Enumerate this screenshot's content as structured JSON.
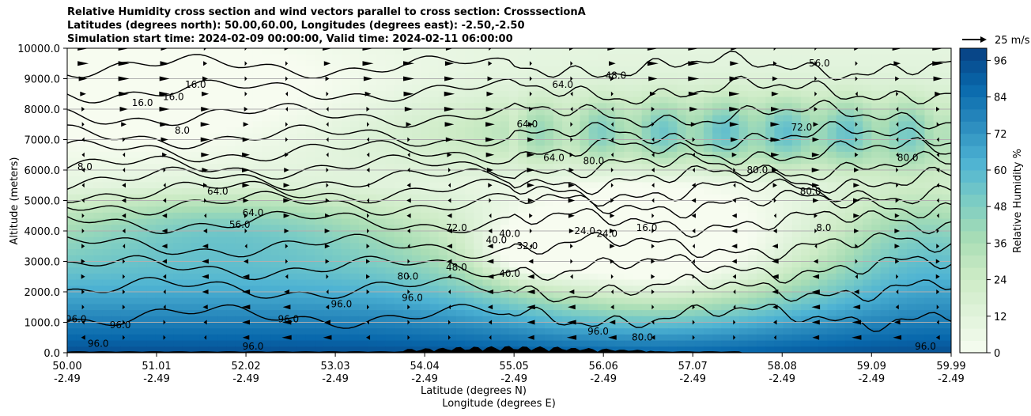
{
  "chart_data": {
    "type": "heatmap",
    "title_lines": [
      "Relative Humidity cross section and wind vectors parallel to cross section: CrosssectionA",
      "Latitudes (degrees north): 50.00,60.00, Longitudes (degrees east): -2.50,-2.50",
      "Simulation start time: 2024-02-09 00:00:00, Valid time: 2024-02-11 06:00:00"
    ],
    "xlabel": "Latitude (degrees N)",
    "xlabel2": "Longitude (degrees E)",
    "ylabel": "Altitude (meters)",
    "xlim": [
      50.0,
      59.99
    ],
    "ylim": [
      0,
      10000
    ],
    "x_ticks": [
      {
        "lat": "50.00",
        "lon": "-2.49",
        "v": 50.0
      },
      {
        "lat": "51.01",
        "lon": "-2.49",
        "v": 51.01
      },
      {
        "lat": "52.02",
        "lon": "-2.49",
        "v": 52.02
      },
      {
        "lat": "53.03",
        "lon": "-2.49",
        "v": 53.03
      },
      {
        "lat": "54.04",
        "lon": "-2.49",
        "v": 54.04
      },
      {
        "lat": "55.05",
        "lon": "-2.49",
        "v": 55.05
      },
      {
        "lat": "56.06",
        "lon": "-2.49",
        "v": 56.06
      },
      {
        "lat": "57.07",
        "lon": "-2.49",
        "v": 57.07
      },
      {
        "lat": "58.08",
        "lon": "-2.49",
        "v": 58.08
      },
      {
        "lat": "59.09",
        "lon": "-2.49",
        "v": 59.09
      },
      {
        "lat": "59.99",
        "lon": "-2.49",
        "v": 59.99
      }
    ],
    "y_ticks": [
      {
        "label": "0.0",
        "v": 0
      },
      {
        "label": "1000.0",
        "v": 1000
      },
      {
        "label": "2000.0",
        "v": 2000
      },
      {
        "label": "3000.0",
        "v": 3000
      },
      {
        "label": "4000.0",
        "v": 4000
      },
      {
        "label": "5000.0",
        "v": 5000
      },
      {
        "label": "6000.0",
        "v": 6000
      },
      {
        "label": "7000.0",
        "v": 7000
      },
      {
        "label": "8000.0",
        "v": 8000
      },
      {
        "label": "9000.0",
        "v": 9000
      },
      {
        "label": "10000.0",
        "v": 10000
      }
    ],
    "grid": "horizontal",
    "colorbar": {
      "label": "Relative Humidity %",
      "range": [
        0,
        100
      ],
      "ticks": [
        0,
        12,
        24,
        36,
        48,
        60,
        72,
        84,
        96
      ],
      "colors": [
        "#f7fcf0",
        "#e0f3db",
        "#ccebc5",
        "#a8ddb5",
        "#7bccc4",
        "#4eb3d3",
        "#2b8cbe",
        "#0868ac",
        "#084081"
      ]
    },
    "quiver_key": {
      "label": "25 m/s",
      "value": 25
    },
    "contour_labels": [
      {
        "t": "16.0",
        "x": 50.85,
        "y": 8100
      },
      {
        "t": "16.0",
        "x": 51.2,
        "y": 8300
      },
      {
        "t": "16.0",
        "x": 51.45,
        "y": 8700
      },
      {
        "t": "8.0",
        "x": 51.3,
        "y": 7200
      },
      {
        "t": "8.0",
        "x": 50.2,
        "y": 6000
      },
      {
        "t": "64.0",
        "x": 51.7,
        "y": 5200
      },
      {
        "t": "64.0",
        "x": 52.1,
        "y": 4500
      },
      {
        "t": "56.0",
        "x": 51.95,
        "y": 4100
      },
      {
        "t": "48.0",
        "x": 56.2,
        "y": 9000
      },
      {
        "t": "64.0",
        "x": 55.6,
        "y": 8700
      },
      {
        "t": "64.0",
        "x": 55.2,
        "y": 7400
      },
      {
        "t": "64.0",
        "x": 55.5,
        "y": 6300
      },
      {
        "t": "80.0",
        "x": 55.95,
        "y": 6200
      },
      {
        "t": "80.0",
        "x": 57.8,
        "y": 5900
      },
      {
        "t": "80.0",
        "x": 59.5,
        "y": 6300
      },
      {
        "t": "80.0",
        "x": 58.4,
        "y": 5200
      },
      {
        "t": "72.0",
        "x": 58.3,
        "y": 7300
      },
      {
        "t": "56.0",
        "x": 58.5,
        "y": 9400
      },
      {
        "t": "72.0",
        "x": 54.4,
        "y": 4000
      },
      {
        "t": "40.0",
        "x": 55.0,
        "y": 3800
      },
      {
        "t": "40.0",
        "x": 54.85,
        "y": 3600
      },
      {
        "t": "32.0",
        "x": 55.2,
        "y": 3400
      },
      {
        "t": "24.0",
        "x": 55.85,
        "y": 3900
      },
      {
        "t": "24.0",
        "x": 56.1,
        "y": 3800
      },
      {
        "t": "16.0",
        "x": 56.55,
        "y": 4000
      },
      {
        "t": "40.0",
        "x": 55.0,
        "y": 2500
      },
      {
        "t": "48.0",
        "x": 54.4,
        "y": 2700
      },
      {
        "t": "80.0",
        "x": 53.85,
        "y": 2400
      },
      {
        "t": "96.0",
        "x": 53.9,
        "y": 1700
      },
      {
        "t": "96.0",
        "x": 53.1,
        "y": 1500
      },
      {
        "t": "96.0",
        "x": 52.5,
        "y": 1000
      },
      {
        "t": "96.0",
        "x": 50.1,
        "y": 1000
      },
      {
        "t": "96.0",
        "x": 50.6,
        "y": 800
      },
      {
        "t": "96.0",
        "x": 50.35,
        "y": 200
      },
      {
        "t": "96.0",
        "x": 52.1,
        "y": 100
      },
      {
        "t": "80.0",
        "x": 56.5,
        "y": 400
      },
      {
        "t": "96.0",
        "x": 56.0,
        "y": 600
      },
      {
        "t": "96.0",
        "x": 59.7,
        "y": 100
      },
      {
        "t": "8.0",
        "x": 58.55,
        "y": 4000
      }
    ]
  }
}
